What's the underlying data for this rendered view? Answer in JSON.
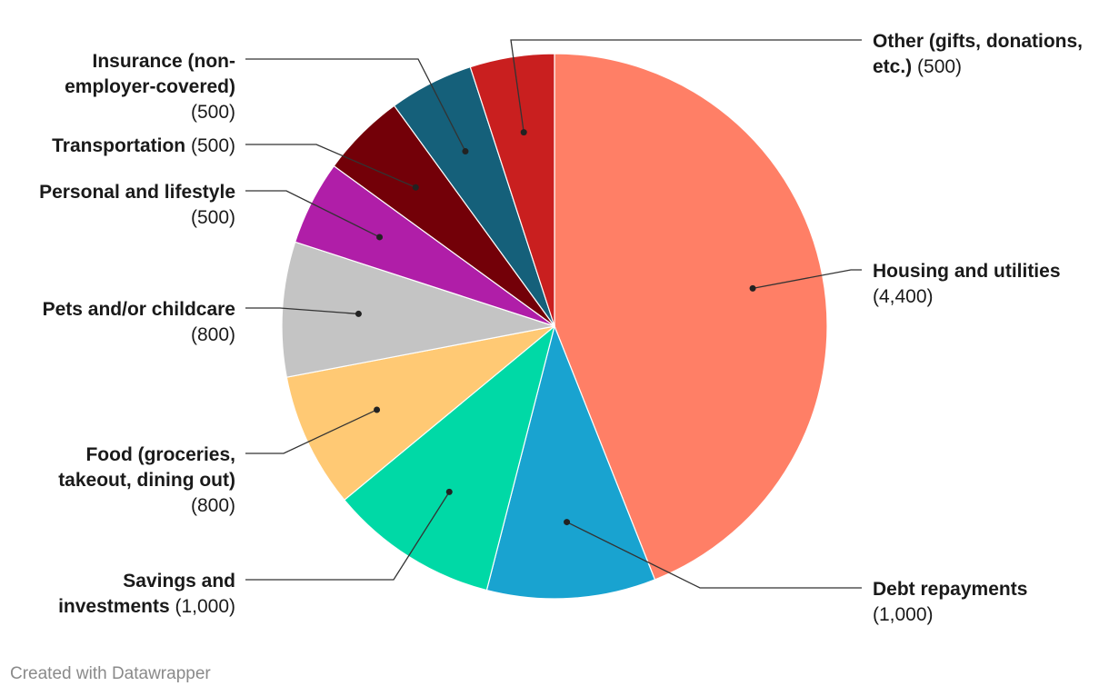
{
  "chart_data": {
    "type": "pie",
    "start_angle_deg": 0,
    "direction": "clockwise",
    "slices": [
      {
        "label": "Housing and utilities",
        "value": 4400,
        "value_label": "(4,400)",
        "color": "#ff7f66"
      },
      {
        "label": "Debt repayments",
        "value": 1000,
        "value_label": "(1,000)",
        "color": "#19a3d0"
      },
      {
        "label": "Savings and investments",
        "value": 1000,
        "value_label": "(1,000)",
        "color": "#00d9a6"
      },
      {
        "label": "Food (groceries, takeout, dining out)",
        "value": 800,
        "value_label": "(800)",
        "color": "#ffc974"
      },
      {
        "label": "Pets and/or childcare",
        "value": 800,
        "value_label": "(800)",
        "color": "#c4c4c4"
      },
      {
        "label": "Personal and lifestyle",
        "value": 500,
        "value_label": "(500)",
        "color": "#b01ea8"
      },
      {
        "label": "Transportation",
        "value": 500,
        "value_label": "(500)",
        "color": "#730008"
      },
      {
        "label": "Insurance (non-employer-covered)",
        "value": 500,
        "value_label": "(500)",
        "color": "#15607a"
      },
      {
        "label": "Other (gifts, donations, etc.)",
        "value": 500,
        "value_label": "(500)",
        "color": "#c91f1f"
      }
    ]
  },
  "footer": {
    "credit": "Created with Datawrapper"
  }
}
